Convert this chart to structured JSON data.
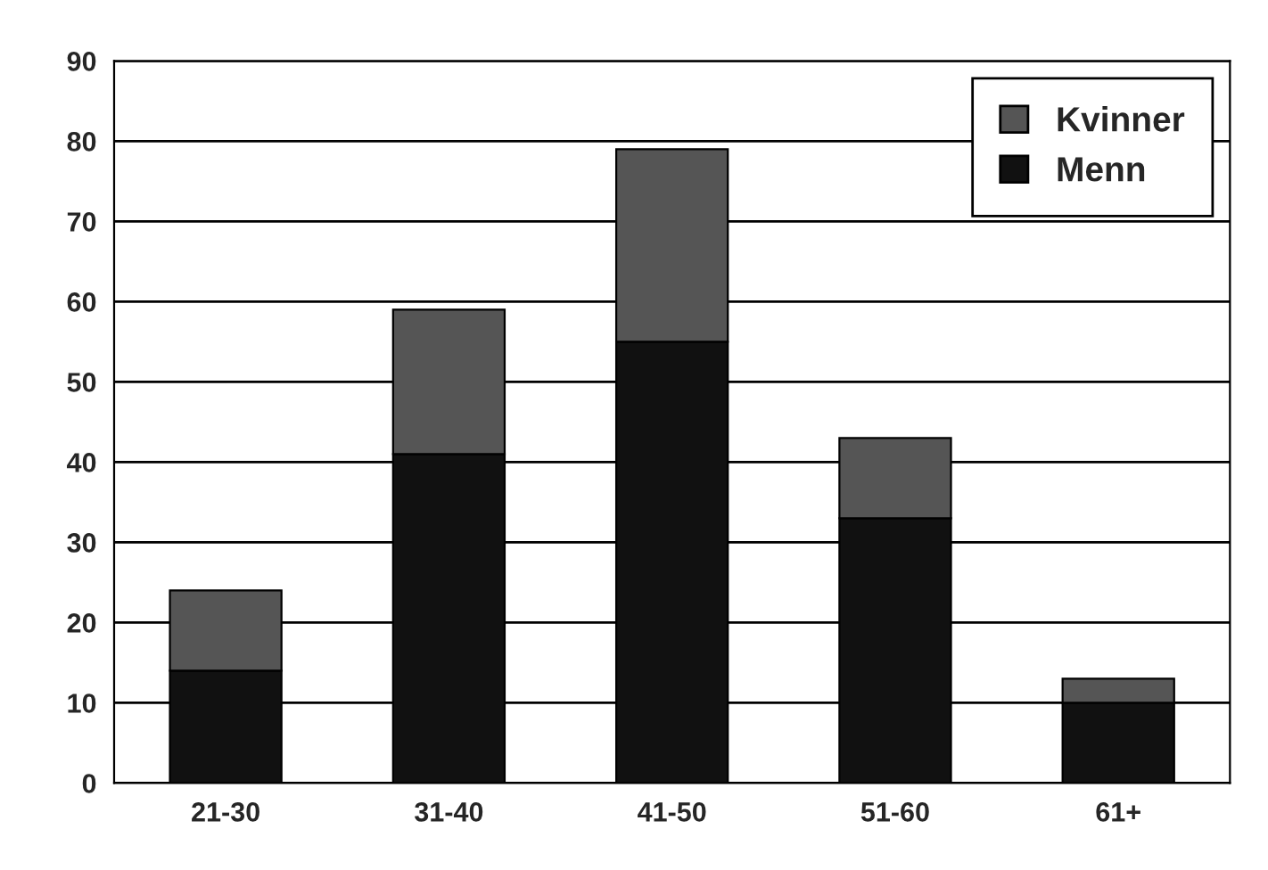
{
  "chart_data": {
    "type": "bar",
    "stacked": true,
    "categories": [
      "21-30",
      "31-40",
      "41-50",
      "51-60",
      "61+"
    ],
    "series": [
      {
        "name": "Menn",
        "color": "#111111",
        "values": [
          14,
          41,
          55,
          33,
          10
        ]
      },
      {
        "name": "Kvinner",
        "color": "#555555",
        "values": [
          10,
          18,
          24,
          10,
          3
        ]
      }
    ],
    "ylim": [
      0,
      90
    ],
    "yticks": [
      0,
      10,
      20,
      30,
      40,
      50,
      60,
      70,
      80,
      90
    ],
    "grid": "y",
    "legend": "top right"
  }
}
